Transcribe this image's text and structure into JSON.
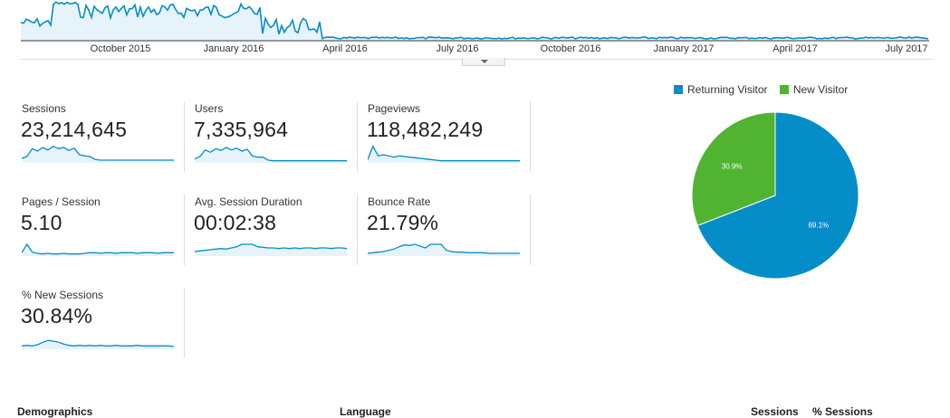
{
  "timeline": {
    "axis_labels": [
      "October 2015",
      "January 2016",
      "April 2016",
      "July 2016",
      "October 2016",
      "January 2017",
      "April 2017",
      "July 2017"
    ]
  },
  "metrics": [
    {
      "key": "sessions",
      "label": "Sessions",
      "value": "23,214,645",
      "trend": [
        6,
        9,
        22,
        18,
        24,
        20,
        26,
        22,
        24,
        19,
        23,
        12,
        10,
        9,
        4,
        3,
        3,
        3,
        3,
        3,
        3,
        3,
        3,
        3,
        3,
        3,
        3,
        3,
        3,
        3
      ]
    },
    {
      "key": "users",
      "label": "Users",
      "value": "7,335,964",
      "trend": [
        5,
        9,
        20,
        16,
        22,
        19,
        24,
        20,
        23,
        18,
        21,
        10,
        8,
        8,
        3,
        2,
        2,
        2,
        2,
        2,
        2,
        2,
        2,
        2,
        2,
        2,
        2,
        2,
        2,
        2
      ]
    },
    {
      "key": "pageviews",
      "label": "Pageviews",
      "value": "118,482,249",
      "trend": [
        4,
        26,
        10,
        12,
        10,
        8,
        10,
        9,
        8,
        7,
        6,
        5,
        4,
        3,
        2,
        2,
        2,
        2,
        2,
        2,
        2,
        2,
        2,
        2,
        2,
        2,
        2,
        2,
        2,
        2
      ]
    },
    {
      "key": "pages_per_session",
      "label": "Pages / Session",
      "value": "5.10",
      "trend": [
        4,
        18,
        5,
        3,
        2,
        3,
        2,
        2,
        3,
        2,
        2,
        2,
        3,
        4,
        4,
        3,
        4,
        4,
        3,
        4,
        4,
        4,
        3,
        4,
        4,
        4,
        3,
        4,
        4,
        4
      ]
    },
    {
      "key": "avg_session_duration",
      "label": "Avg. Session Duration",
      "value": "00:02:38",
      "trend": [
        6,
        7,
        8,
        9,
        10,
        11,
        10,
        12,
        14,
        18,
        18,
        18,
        14,
        13,
        12,
        12,
        11,
        12,
        11,
        12,
        11,
        12,
        12,
        11,
        12,
        12,
        11,
        12,
        12,
        11
      ]
    },
    {
      "key": "bounce_rate",
      "label": "Bounce Rate",
      "value": "21.79%",
      "trend": [
        3,
        4,
        5,
        6,
        8,
        10,
        14,
        17,
        16,
        18,
        15,
        12,
        18,
        18,
        18,
        8,
        6,
        5,
        5,
        4,
        4,
        4,
        4,
        3,
        3,
        3,
        3,
        3,
        3,
        3
      ]
    },
    {
      "key": "new_sessions",
      "label": "% New Sessions",
      "value": "30.84%",
      "trend": [
        4,
        5,
        4,
        6,
        10,
        13,
        12,
        10,
        7,
        5,
        4,
        5,
        4,
        5,
        4,
        5,
        4,
        4,
        5,
        4,
        4,
        4,
        5,
        4,
        4,
        4,
        4,
        4,
        4,
        3
      ]
    }
  ],
  "pie": {
    "legend": [
      {
        "label": "Returning Visitor",
        "color": "#058dc7"
      },
      {
        "label": "New Visitor",
        "color": "#50b432"
      }
    ],
    "slices": [
      {
        "label": "Returning Visitor",
        "value": 69.1,
        "text": "69.1%",
        "color": "#058dc7"
      },
      {
        "label": "New Visitor",
        "value": 30.9,
        "text": "30.9%",
        "color": "#50b432"
      }
    ]
  },
  "bottom": {
    "demographics": "Demographics",
    "language": "Language",
    "sessions": "Sessions",
    "pct_sessions": "% Sessions"
  }
}
